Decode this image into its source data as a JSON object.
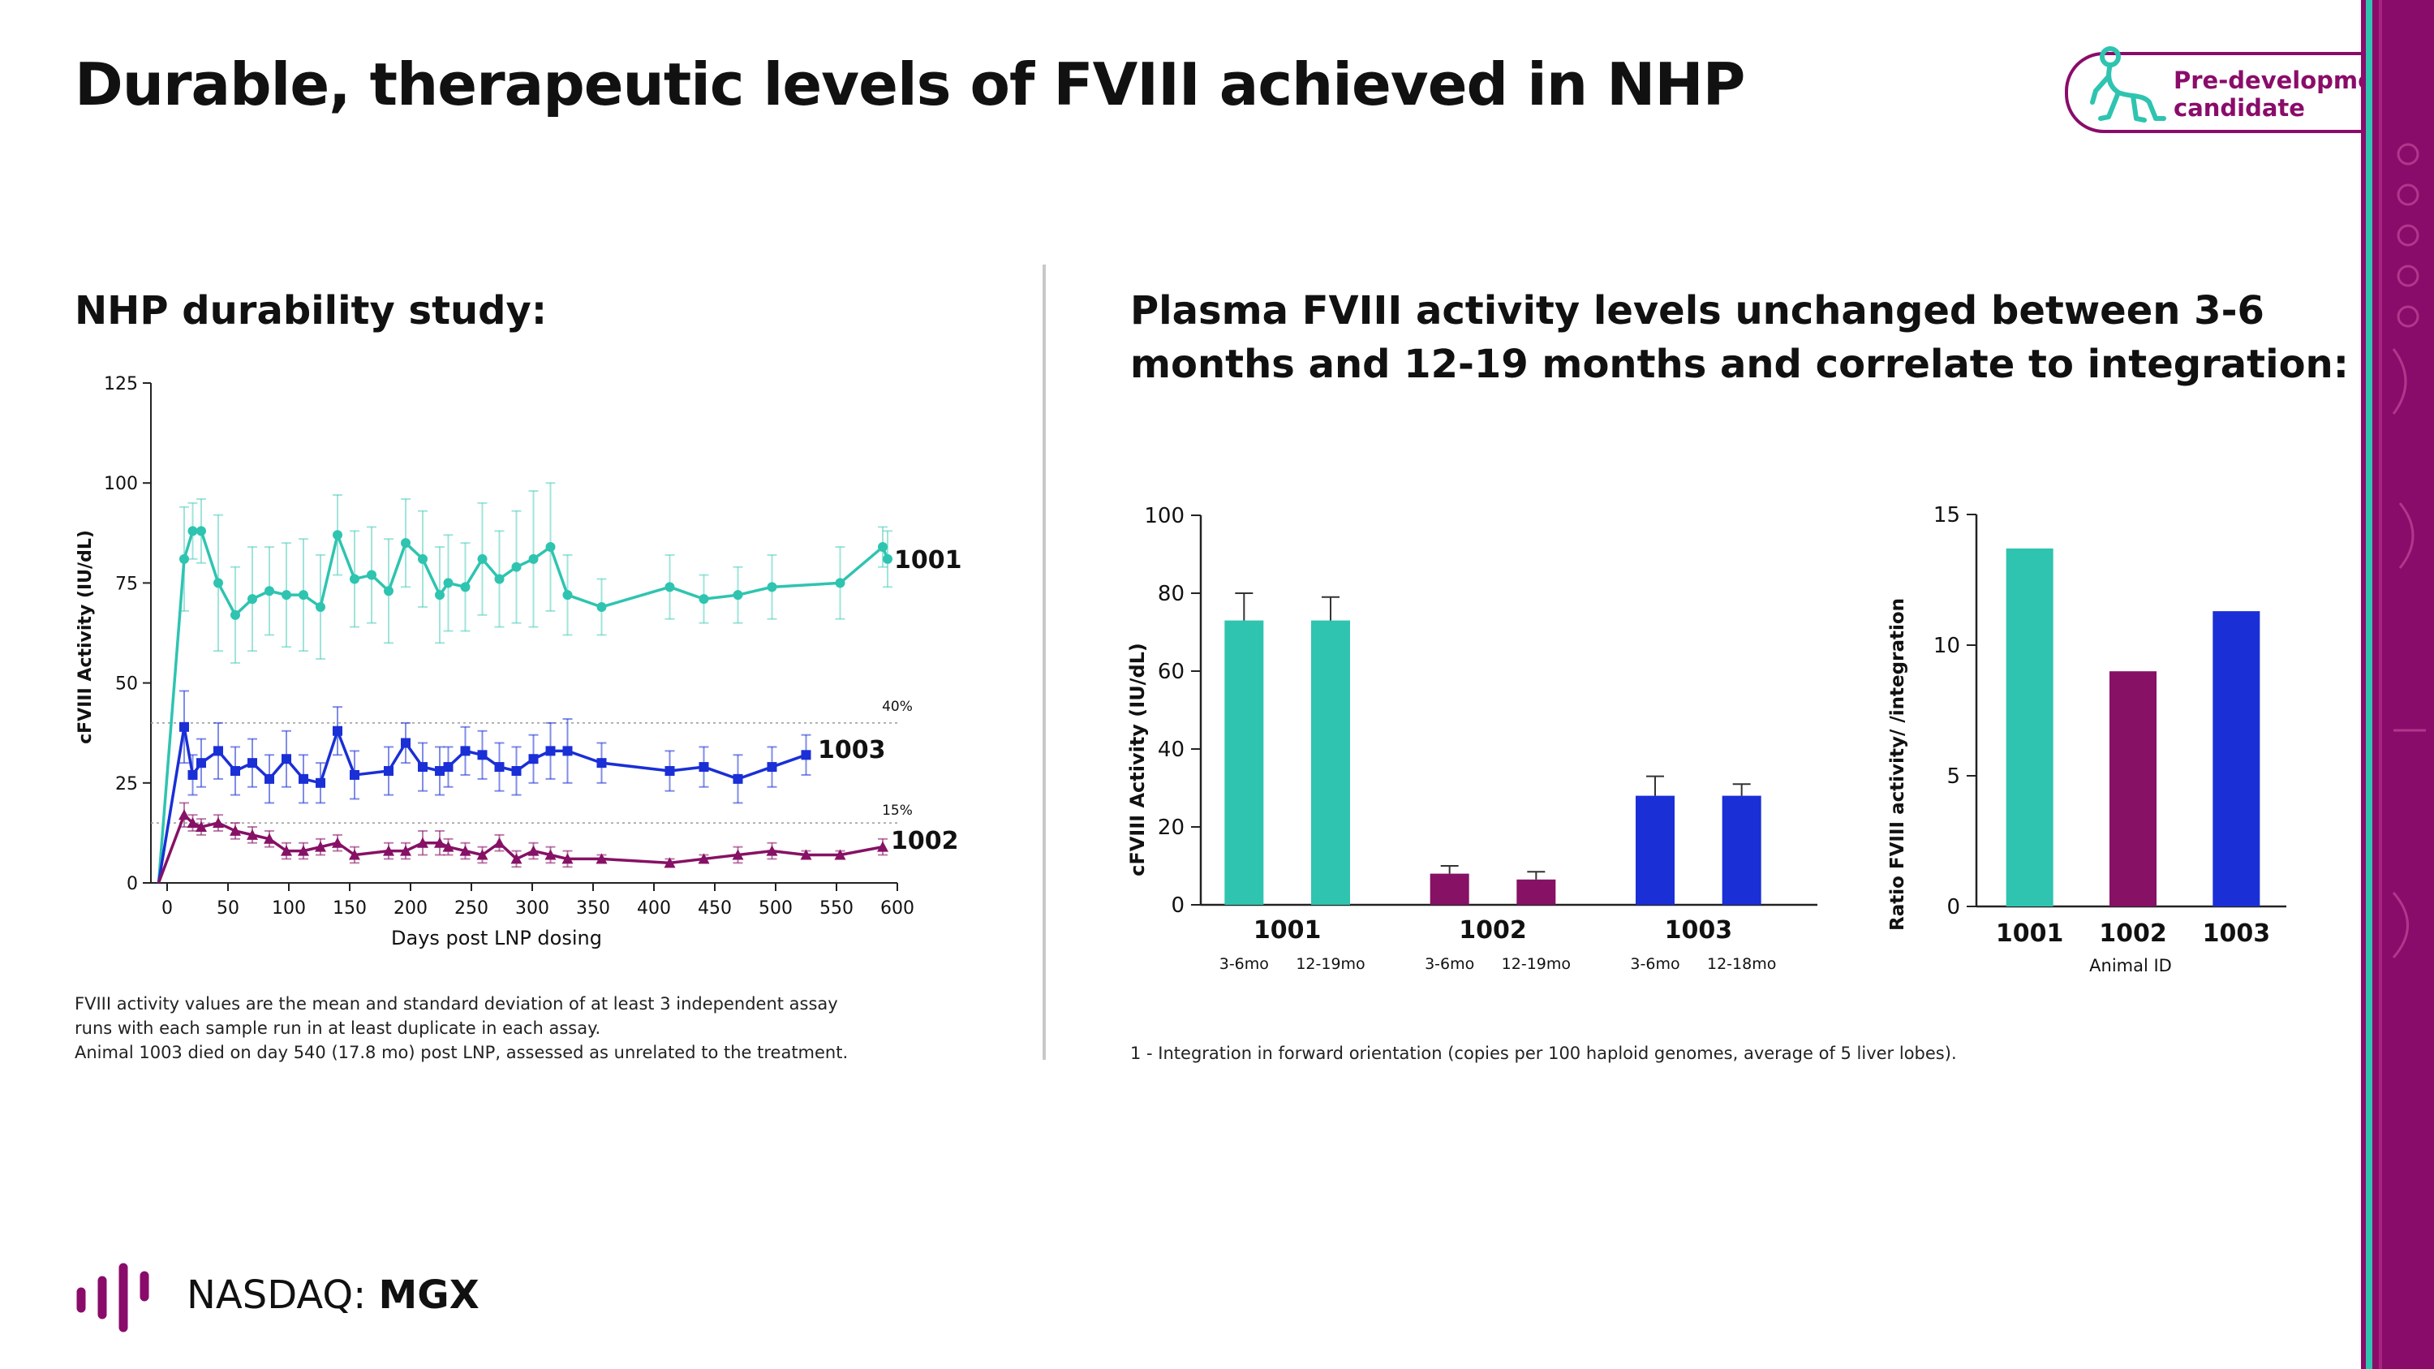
{
  "title": "Durable, therapeutic levels of FVIII achieved in NHP",
  "badge": {
    "label_line1": "Pre-development",
    "label_line2": "candidate"
  },
  "left": {
    "subtitle": "NHP durability study:",
    "footnote_line1": "FVIII activity values are the mean and standard deviation of at least 3 independent assay",
    "footnote_line2": "runs with each sample run in at least duplicate in each assay.",
    "footnote_line3": "Animal 1003 died on day 540 (17.8 mo) post LNP, assessed as unrelated to the treatment."
  },
  "right": {
    "subtitle_line1": "Plasma FVIII activity levels unchanged between 3-6",
    "subtitle_line2": "months and 12-19 months and correlate to integration:",
    "footnote": "1 - Integration in forward orientation (copies per 100 haploid genomes, average of 5 liver lobes)."
  },
  "footer": {
    "prefix": "NASDAQ: ",
    "ticker": "MGX"
  },
  "colors": {
    "teal": "#2ec4b0",
    "blue": "#1a2fd6",
    "purple": "#861165",
    "magenta": "#8a0c6a"
  },
  "chart_data": [
    {
      "type": "line",
      "xlabel": "Days post LNP dosing",
      "ylabel": "cFVIII Activity (IU/dL)",
      "xlim": [
        0,
        600
      ],
      "ylim": [
        0,
        125
      ],
      "xticks": [
        0,
        50,
        100,
        150,
        200,
        250,
        300,
        350,
        400,
        450,
        500,
        550,
        600
      ],
      "yticks": [
        0,
        25,
        50,
        75,
        100,
        125
      ],
      "reference_lines": [
        {
          "y": 40,
          "label": "40%"
        },
        {
          "y": 15,
          "label": "15%"
        }
      ],
      "series": [
        {
          "name": "1001",
          "color": "#2ec4b0",
          "marker": "circle",
          "x": [
            -7,
            14,
            21,
            28,
            42,
            56,
            70,
            84,
            98,
            112,
            126,
            140,
            154,
            168,
            182,
            196,
            210,
            224,
            231,
            245,
            259,
            273,
            287,
            301,
            315,
            329,
            357,
            413,
            441,
            469,
            497,
            553,
            588,
            592
          ],
          "y": [
            0,
            81,
            88,
            88,
            75,
            67,
            71,
            73,
            72,
            72,
            69,
            87,
            76,
            77,
            73,
            85,
            81,
            72,
            75,
            74,
            81,
            76,
            79,
            81,
            84,
            72,
            69,
            74,
            71,
            72,
            74,
            75,
            84,
            81
          ],
          "err": [
            0,
            13,
            7,
            8,
            17,
            12,
            13,
            11,
            13,
            14,
            13,
            10,
            12,
            12,
            13,
            11,
            12,
            12,
            12,
            11,
            14,
            12,
            14,
            17,
            16,
            10,
            7,
            8,
            6,
            7,
            8,
            9,
            5,
            7
          ]
        },
        {
          "name": "1003",
          "color": "#1a2fd6",
          "marker": "square",
          "x": [
            -7,
            14,
            21,
            28,
            42,
            56,
            70,
            84,
            98,
            112,
            126,
            140,
            154,
            182,
            196,
            210,
            224,
            231,
            245,
            259,
            273,
            287,
            301,
            315,
            329,
            357,
            413,
            441,
            469,
            497,
            525
          ],
          "y": [
            0,
            39,
            27,
            30,
            33,
            28,
            30,
            26,
            31,
            26,
            25,
            38,
            27,
            28,
            35,
            29,
            28,
            29,
            33,
            32,
            29,
            28,
            31,
            33,
            33,
            30,
            28,
            29,
            26,
            29,
            32
          ],
          "err": [
            0,
            9,
            5,
            6,
            7,
            6,
            6,
            6,
            7,
            6,
            5,
            6,
            6,
            6,
            5,
            6,
            6,
            5,
            6,
            6,
            6,
            6,
            6,
            7,
            8,
            5,
            5,
            5,
            6,
            5,
            5
          ]
        },
        {
          "name": "1002",
          "color": "#861165",
          "marker": "triangle",
          "x": [
            -7,
            14,
            21,
            28,
            42,
            56,
            70,
            84,
            98,
            112,
            126,
            140,
            154,
            182,
            196,
            210,
            224,
            231,
            245,
            259,
            273,
            287,
            301,
            315,
            329,
            357,
            413,
            441,
            469,
            497,
            525,
            553,
            588
          ],
          "y": [
            0,
            17,
            15,
            14,
            15,
            13,
            12,
            11,
            8,
            8,
            9,
            10,
            7,
            8,
            8,
            10,
            10,
            9,
            8,
            7,
            10,
            6,
            8,
            7,
            6,
            6,
            5,
            6,
            7,
            8,
            7,
            7,
            9
          ],
          "err": [
            0,
            3,
            2,
            2,
            2,
            2,
            2,
            2,
            2,
            2,
            2,
            2,
            2,
            2,
            2,
            3,
            3,
            2,
            2,
            2,
            2,
            2,
            2,
            2,
            2,
            1,
            1,
            1,
            2,
            2,
            1,
            1,
            2
          ]
        }
      ]
    },
    {
      "type": "bar",
      "ylabel": "cFVIII Activity (IU/dL)",
      "ylim": [
        0,
        100
      ],
      "yticks": [
        0,
        20,
        40,
        60,
        80,
        100
      ],
      "groups": [
        {
          "label": "1001",
          "color": "#2ec4b0",
          "bars": [
            {
              "label": "3-6mo",
              "value": 73,
              "err": 7
            },
            {
              "label": "12-19mo",
              "value": 73,
              "err": 6
            }
          ]
        },
        {
          "label": "1002",
          "color": "#861165",
          "bars": [
            {
              "label": "3-6mo",
              "value": 8,
              "err": 2
            },
            {
              "label": "12-19mo",
              "value": 6.5,
              "err": 2
            }
          ]
        },
        {
          "label": "1003",
          "color": "#1a2fd6",
          "bars": [
            {
              "label": "3-6mo",
              "value": 28,
              "err": 5
            },
            {
              "label": "12-18mo",
              "value": 28,
              "err": 3
            }
          ]
        }
      ]
    },
    {
      "type": "bar",
      "xlabel": "Animal ID",
      "ylabel": "Ratio FVIII activity/ /integration",
      "ylim": [
        0,
        15
      ],
      "yticks": [
        0,
        5,
        10,
        15
      ],
      "categories": [
        "1001",
        "1002",
        "1003"
      ],
      "values": [
        13.7,
        9.0,
        11.3
      ],
      "colors": [
        "#2ec4b0",
        "#861165",
        "#1a2fd6"
      ]
    }
  ]
}
